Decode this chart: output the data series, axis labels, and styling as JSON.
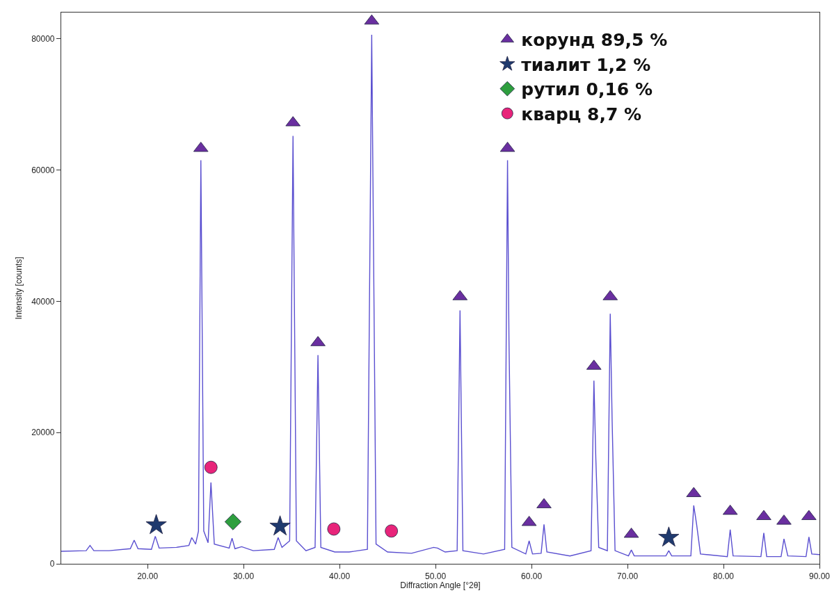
{
  "chart_data": {
    "type": "line",
    "xlabel": "Diffraction Angle [°2θ]",
    "ylabel": "Intensity [counts]",
    "xlim": [
      11,
      90
    ],
    "ylim": [
      0,
      84000
    ],
    "xticks": [
      {
        "value": 20,
        "label": "20.00"
      },
      {
        "value": 30,
        "label": "30.00"
      },
      {
        "value": 40,
        "label": "40.00"
      },
      {
        "value": 50,
        "label": "50.00"
      },
      {
        "value": 60,
        "label": "60.00"
      },
      {
        "value": 70,
        "label": "70.00"
      },
      {
        "value": 80,
        "label": "80.00"
      },
      {
        "value": 90,
        "label": "90.00"
      }
    ],
    "yticks": [
      0,
      20000,
      40000,
      60000,
      80000
    ],
    "grid": false,
    "legend": "top right",
    "marker": "none",
    "line_style": "solid",
    "series": [
      {
        "color": "#5a4fd0",
        "x": [
          11,
          13.6,
          14,
          14.4,
          16,
          18.2,
          18.6,
          19,
          20.4,
          20.8,
          21.2,
          23,
          24.3,
          24.6,
          25,
          25.3,
          25.55,
          25.85,
          26.3,
          26.6,
          26.95,
          28.5,
          28.8,
          29.1,
          29.8,
          31,
          33.2,
          33.6,
          34,
          34.8,
          35.15,
          35.5,
          36.5,
          37.45,
          37.75,
          38.05,
          39.5,
          41,
          42.9,
          43.35,
          43.8,
          45,
          47.5,
          49.8,
          50.2,
          51,
          52.25,
          52.55,
          52.85,
          55,
          57.2,
          57.5,
          57.65,
          57.95,
          59.4,
          59.75,
          60.1,
          61,
          61.3,
          61.6,
          64,
          66.2,
          66.5,
          66.7,
          67,
          67.9,
          68.2,
          68.4,
          68.7,
          70.1,
          70.4,
          70.7,
          74,
          74.3,
          74.6,
          76.6,
          76.9,
          77.2,
          77.6,
          80.4,
          80.7,
          81,
          83.9,
          84.2,
          84.5,
          86,
          86.3,
          86.7,
          88.6,
          88.9,
          89.2,
          90
        ],
        "values": [
          1900,
          2000,
          2800,
          2000,
          2000,
          2300,
          3600,
          2300,
          2200,
          4200,
          2400,
          2500,
          2800,
          4000,
          3000,
          5000,
          61500,
          5000,
          3200,
          12400,
          3000,
          2400,
          3900,
          2300,
          2600,
          2000,
          2200,
          4000,
          2500,
          3500,
          65200,
          3500,
          2000,
          2500,
          31800,
          2500,
          1800,
          1800,
          2200,
          80600,
          3000,
          1800,
          1600,
          2500,
          2400,
          1800,
          2000,
          38600,
          2000,
          1500,
          2200,
          61500,
          34100,
          2500,
          1500,
          3500,
          1500,
          1600,
          6000,
          1800,
          1200,
          2000,
          27900,
          16000,
          2500,
          2000,
          38100,
          21700,
          2000,
          1200,
          2100,
          1200,
          1200,
          2000,
          1200,
          1200,
          8900,
          6000,
          1500,
          1100,
          5200,
          1200,
          1100,
          4700,
          1100,
          1100,
          3800,
          1200,
          1100,
          4100,
          1500,
          1400
        ]
      },
      {
        "type": "scatter",
        "name": "корунд 89,5 %",
        "color": "#6a2fa0",
        "marker": "triangle",
        "x": [
          25.55,
          35.15,
          37.75,
          43.35,
          52.55,
          57.5,
          59.75,
          61.3,
          66.5,
          68.2,
          70.4,
          76.9,
          80.7,
          84.2,
          86.3,
          88.9
        ],
        "values": [
          63300,
          67200,
          33700,
          82700,
          40700,
          63300,
          6300,
          9000,
          30100,
          40700,
          4500,
          10700,
          8000,
          7200,
          6500,
          7200
        ]
      },
      {
        "type": "scatter",
        "name": "тиалит 1,2 %",
        "color": "#1f3a6e",
        "marker": "star",
        "x": [
          20.9,
          33.8,
          74.3
        ],
        "values": [
          5900,
          5700,
          4000
        ]
      },
      {
        "type": "scatter",
        "name": "рутил 0,16 %",
        "color": "#2e9e3e",
        "marker": "diamond",
        "x": [
          28.9
        ],
        "values": [
          6400
        ]
      },
      {
        "type": "scatter",
        "name": "кварц 8,7 %",
        "color": "#e8247a",
        "marker": "circle",
        "x": [
          26.6,
          39.4,
          45.4
        ],
        "values": [
          14700,
          5300,
          5000
        ]
      }
    ]
  }
}
